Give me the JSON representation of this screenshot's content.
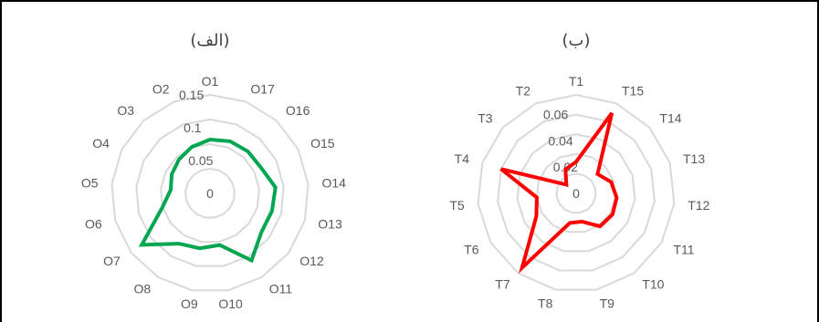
{
  "chart_data": [
    {
      "type": "radar",
      "title": "(الف)",
      "categories": [
        "O1",
        "O17",
        "O16",
        "O15",
        "O14",
        "O13",
        "O12",
        "O11",
        "O10",
        "O9",
        "O8",
        "O7",
        "O6",
        "O5",
        "O4",
        "O3",
        "O2"
      ],
      "series": [
        {
          "color": "#00a650",
          "values": [
            0.082,
            0.085,
            0.086,
            0.087,
            0.1,
            0.098,
            0.098,
            0.12,
            0.08,
            0.085,
            0.09,
            0.13,
            0.075,
            0.06,
            0.065,
            0.07,
            0.076
          ]
        }
      ],
      "radial_ticks": [
        "0",
        "0.05",
        "0.1",
        "0.15"
      ],
      "rlim": [
        0,
        0.15
      ],
      "grid": true,
      "grid_rings": 4,
      "legend": "none"
    },
    {
      "type": "radar",
      "title": "(ب)",
      "categories": [
        "T1",
        "T15",
        "T14",
        "T13",
        "T12",
        "T11",
        "T10",
        "T9",
        "T8",
        "T7",
        "T6",
        "T5",
        "T4",
        "T3",
        "T2"
      ],
      "series": [
        {
          "color": "#ff0000",
          "values": [
            0.024,
            0.067,
            0.022,
            0.028,
            0.031,
            0.032,
            0.031,
            0.022,
            0.023,
            0.07,
            0.035,
            0.03,
            0.06,
            0.01,
            0.02
          ]
        }
      ],
      "radial_ticks": [
        "0",
        "0.02",
        "0.04",
        "0.06"
      ],
      "rlim": [
        0,
        0.075
      ],
      "grid": true,
      "grid_rings": 5,
      "legend": "none"
    }
  ]
}
